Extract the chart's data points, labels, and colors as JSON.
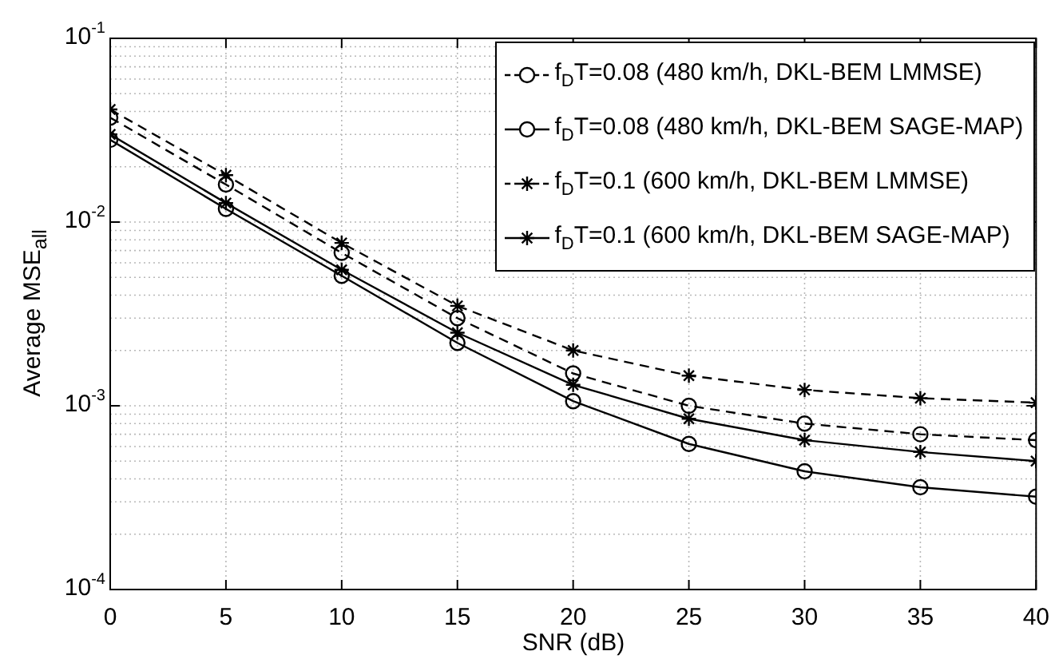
{
  "chart_data": {
    "type": "line",
    "xlabel": "SNR (dB)",
    "ylabel": "Average MSE$_{all}$",
    "x": [
      0,
      5,
      10,
      15,
      20,
      25,
      30,
      35,
      40
    ],
    "series": [
      {
        "name": "f$_{D}$T=0.08 (480 km/h, DKL-BEM LMMSE)",
        "color": "#000000",
        "marker": "circle",
        "line_style": "dashed",
        "values": [
          0.037,
          0.016,
          0.0068,
          0.003,
          0.0015,
          0.001,
          0.0008,
          0.0007,
          0.00065
        ]
      },
      {
        "name": "f$_{D}$T=0.08 (480 km/h, DKL-BEM SAGE-MAP)",
        "color": "#000000",
        "marker": "circle",
        "line_style": "solid",
        "values": [
          0.028,
          0.0118,
          0.0051,
          0.0022,
          0.00106,
          0.00062,
          0.00044,
          0.00036,
          0.00032
        ]
      },
      {
        "name": "f$_{D}$T=0.1 (600 km/h, DKL-BEM LMMSE)",
        "color": "#000000",
        "marker": "cross",
        "line_style": "dashed",
        "values": [
          0.041,
          0.018,
          0.0077,
          0.0035,
          0.002,
          0.00146,
          0.00122,
          0.0011,
          0.00104
        ]
      },
      {
        "name": "f$_{D}$T=0.1 (600 km/h, DKL-BEM SAGE-MAP)",
        "color": "#000000",
        "marker": "cross",
        "line_style": "solid",
        "values": [
          0.03,
          0.0127,
          0.0055,
          0.0025,
          0.0013,
          0.00085,
          0.00065,
          0.00056,
          0.0005
        ]
      }
    ],
    "xlim": [
      0,
      40
    ],
    "xticks": [
      0,
      5,
      10,
      15,
      20,
      25,
      30,
      35,
      40
    ],
    "ylim": [
      0.0001,
      0.1
    ],
    "yticks": [
      {
        "value": 0.0001,
        "label": "10$^{-4}$"
      },
      {
        "value": 0.001,
        "label": "10$^{-3}$"
      },
      {
        "value": 0.01,
        "label": "10$^{-2}$"
      },
      {
        "value": 0.1,
        "label": "10$^{-1}$"
      }
    ],
    "log": "y",
    "grid": true,
    "legend": "top right"
  }
}
